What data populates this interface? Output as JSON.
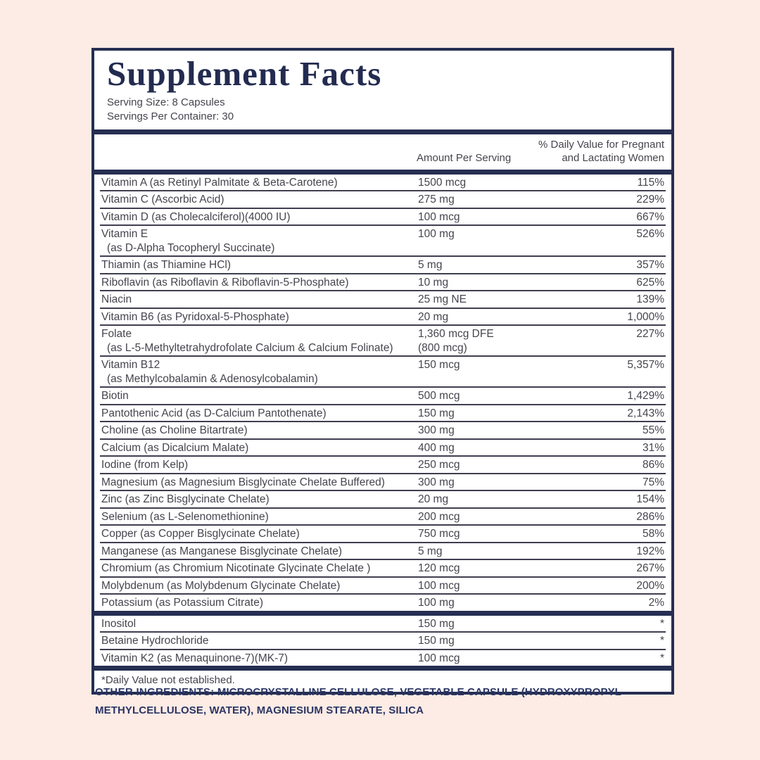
{
  "label": {
    "title": "Supplement Facts",
    "serving_size": "Serving Size: 8 Capsules",
    "servings_per_container": "Servings Per Container: 30",
    "col_amount": "Amount Per Serving",
    "col_dv_line1": "% Daily Value for Pregnant",
    "col_dv_line2": "and Lactating Women",
    "footnote": "*Daily Value not established."
  },
  "colors": {
    "background": "#fdebe5",
    "navy": "#262e52",
    "body_text": "#45454e",
    "panel": "#ffffff"
  },
  "table": {
    "sections": [
      {
        "rows": [
          {
            "name": "Vitamin A (as Retinyl Palmitate & Beta-Carotene)",
            "amount": "1500 mcg",
            "dv": "115%"
          },
          {
            "name": "Vitamin C (Ascorbic Acid)",
            "amount": "275 mg",
            "dv": "229%"
          },
          {
            "name": "Vitamin D (as Cholecalciferol)(4000 IU)",
            "amount": "100 mcg",
            "dv": "667%"
          },
          {
            "name": "Vitamin E",
            "name2": "(as D-Alpha Tocopheryl Succinate)",
            "amount": "100 mg",
            "dv": "526%"
          },
          {
            "name": "Thiamin (as Thiamine HCl)",
            "amount": "5 mg",
            "dv": "357%"
          },
          {
            "name": "Riboflavin (as Riboflavin & Riboflavin-5-Phosphate)",
            "amount": "10 mg",
            "dv": "625%"
          },
          {
            "name": "Niacin",
            "amount": "25 mg NE",
            "dv": "139%"
          },
          {
            "name": "Vitamin B6 (as Pyridoxal-5-Phosphate)",
            "amount": "20 mg",
            "dv": "1,000%"
          },
          {
            "name": "Folate",
            "name2": "(as L-5-Methyltetrahydrofolate Calcium & Calcium Folinate)",
            "amount": "1,360 mcg DFE",
            "amount2": "(800 mcg)",
            "dv": "227%"
          },
          {
            "name": "Vitamin B12",
            "name2": "(as Methylcobalamin & Adenosylcobalamin)",
            "amount": "150 mcg",
            "dv": "5,357%"
          },
          {
            "name": "Biotin",
            "amount": "500 mcg",
            "dv": "1,429%"
          },
          {
            "name": "Pantothenic Acid (as D-Calcium Pantothenate)",
            "amount": "150 mg",
            "dv": "2,143%"
          },
          {
            "name": "Choline (as Choline Bitartrate)",
            "amount": "300 mg",
            "dv": "55%"
          },
          {
            "name": "Calcium (as Dicalcium Malate)",
            "amount": "400 mg",
            "dv": "31%"
          },
          {
            "name": "Iodine (from Kelp)",
            "amount": "250 mcg",
            "dv": "86%"
          },
          {
            "name": "Magnesium (as Magnesium Bisglycinate Chelate Buffered)",
            "amount": "300 mg",
            "dv": "75%"
          },
          {
            "name": "Zinc (as Zinc Bisglycinate Chelate)",
            "amount": "20 mg",
            "dv": "154%"
          },
          {
            "name": "Selenium (as L-Selenomethionine)",
            "amount": "200 mcg",
            "dv": "286%"
          },
          {
            "name": "Copper (as Copper Bisglycinate Chelate)",
            "amount": "750 mcg",
            "dv": "58%"
          },
          {
            "name": "Manganese (as Manganese Bisglycinate Chelate)",
            "amount": "5 mg",
            "dv": "192%"
          },
          {
            "name": "Chromium (as Chromium Nicotinate Glycinate Chelate )",
            "amount": "120 mcg",
            "dv": "267%"
          },
          {
            "name": "Molybdenum (as Molybdenum Glycinate Chelate)",
            "amount": "100 mcg",
            "dv": "200%"
          },
          {
            "name": "Potassium (as Potassium Citrate)",
            "amount": "100 mg",
            "dv": "2%"
          }
        ]
      },
      {
        "rows": [
          {
            "name": "Inositol",
            "amount": "150 mg",
            "dv": "*"
          },
          {
            "name": "Betaine Hydrochloride",
            "amount": "150 mg",
            "dv": "*"
          },
          {
            "name": "Vitamin K2 (as Menaquinone-7)(MK-7)",
            "amount": "100 mcg",
            "dv": "*"
          }
        ]
      }
    ]
  },
  "other_ingredients": {
    "heading": "OTHER INGREDIENTS:",
    "text": "MICROCRYSTALLINE CELLULOSE, VEGETABLE CAPSULE (HYDROXYPROPYL METHYLCELLULOSE, WATER), MAGNESIUM STEARATE, SILICA"
  }
}
